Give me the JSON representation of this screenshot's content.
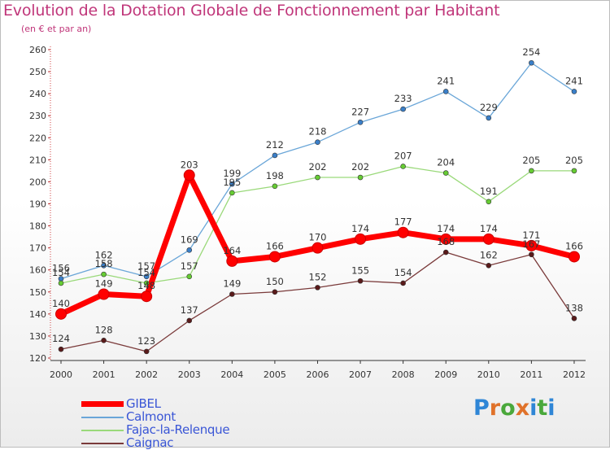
{
  "header": {
    "title": "Evolution de la Dotation Globale de Fonctionnement par Habitant",
    "subtitle": "(en € et par an)"
  },
  "logo": {
    "text": "Proxiti",
    "letters": [
      "P",
      "r",
      "o",
      "x",
      "i",
      "t",
      "i"
    ],
    "colors": [
      "#2f86d6",
      "#e0722a",
      "#4aa83b",
      "#e0722a",
      "#2f86d6",
      "#4aa83b",
      "#2f86d6"
    ]
  },
  "chart_data": {
    "type": "line",
    "title": "Evolution de la Dotation Globale de Fonctionnement par Habitant",
    "subtitle": "(en € et par an)",
    "xlabel": "",
    "ylabel": "",
    "x": [
      "2000",
      "2001",
      "2002",
      "2003",
      "2004",
      "2005",
      "2006",
      "2007",
      "2008",
      "2009",
      "2010",
      "2011",
      "2012"
    ],
    "ylim": [
      120,
      260
    ],
    "yticks": [
      "120",
      "130",
      "140",
      "150",
      "160",
      "170",
      "180",
      "190",
      "200",
      "210",
      "220",
      "230",
      "240",
      "250",
      "260"
    ],
    "grid": false,
    "legend_position": "bottom-left",
    "series": [
      {
        "name": "GIBEL",
        "color": "#ff0000",
        "marker": "#dd0000",
        "emphasis": true,
        "values": [
          140,
          149,
          148,
          203,
          164,
          166,
          170,
          174,
          177,
          174,
          174,
          171,
          166
        ]
      },
      {
        "name": "Calmont",
        "color": "#6aa6d8",
        "marker": "#3a7fc9",
        "emphasis": false,
        "values": [
          156,
          162,
          157,
          169,
          199,
          212,
          218,
          227,
          233,
          241,
          229,
          254,
          241
        ]
      },
      {
        "name": "Fajac-la-Relenque",
        "color": "#9ad97a",
        "marker": "#66cc33",
        "emphasis": false,
        "values": [
          154,
          158,
          154,
          157,
          195,
          198,
          202,
          202,
          207,
          204,
          191,
          205,
          205
        ]
      },
      {
        "name": "Caignac",
        "color": "#7a3a3a",
        "marker": "#5a1a1a",
        "emphasis": false,
        "values": [
          124,
          128,
          123,
          137,
          149,
          150,
          152,
          155,
          154,
          168,
          162,
          167,
          138
        ]
      }
    ]
  }
}
